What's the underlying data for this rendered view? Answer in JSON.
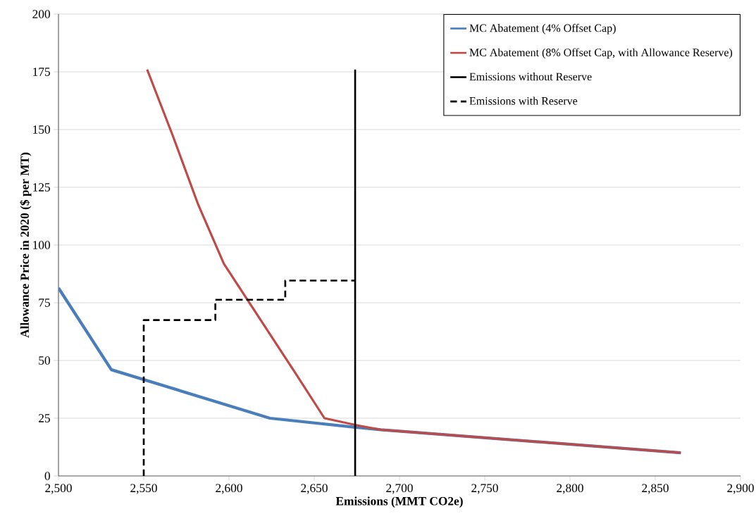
{
  "chart_data": {
    "type": "line",
    "xlabel": "Emissions (MMT CO2e)",
    "ylabel": "Allowance Price in 2020 ($ per MT)",
    "xlim": [
      2500,
      2900
    ],
    "ylim": [
      0,
      200
    ],
    "xticks": [
      {
        "value": 2500,
        "label": "2,500"
      },
      {
        "value": 2550,
        "label": "2,550"
      },
      {
        "value": 2600,
        "label": "2,600"
      },
      {
        "value": 2650,
        "label": "2,650"
      },
      {
        "value": 2700,
        "label": "2,700"
      },
      {
        "value": 2750,
        "label": "2,750"
      },
      {
        "value": 2800,
        "label": "2,800"
      },
      {
        "value": 2850,
        "label": "2,850"
      },
      {
        "value": 2900,
        "label": "2,900"
      }
    ],
    "yticks": [
      0,
      25,
      50,
      75,
      100,
      125,
      150,
      175,
      200
    ],
    "grid": "y",
    "legend": "top right",
    "marker": "none",
    "series": [
      {
        "name": "MC Abatement (4% Offset Cap)",
        "color": "#4a7ebb",
        "line_style": "solid",
        "x": [
          2500,
          2531,
          2624,
          2674,
          2689,
          2865
        ],
        "values": [
          81.4,
          46,
          25,
          21.1,
          20,
          10
        ]
      },
      {
        "name": "MC Abatement (8% Offset Cap, with Allowance Reserve)",
        "color": "#be4b48",
        "line_style": "solid",
        "x": [
          2552,
          2567,
          2582,
          2597,
          2638,
          2656,
          2674,
          2689,
          2865
        ],
        "values": [
          176,
          147.4,
          117.4,
          91.9,
          45.6,
          25,
          22.1,
          20,
          10
        ]
      },
      {
        "name": "Emissions without Reserve",
        "color": "#000000",
        "line_style": "solid",
        "x": [
          2674,
          2674
        ],
        "values": [
          0,
          176
        ]
      },
      {
        "name": "Emissions with Reserve",
        "color": "#000000",
        "line_style": "dashed",
        "x": [
          2550,
          2550,
          2592,
          2592,
          2633,
          2633,
          2674
        ],
        "values": [
          0,
          67.5,
          67.5,
          76.3,
          76.3,
          84.6,
          84.6
        ]
      }
    ]
  }
}
